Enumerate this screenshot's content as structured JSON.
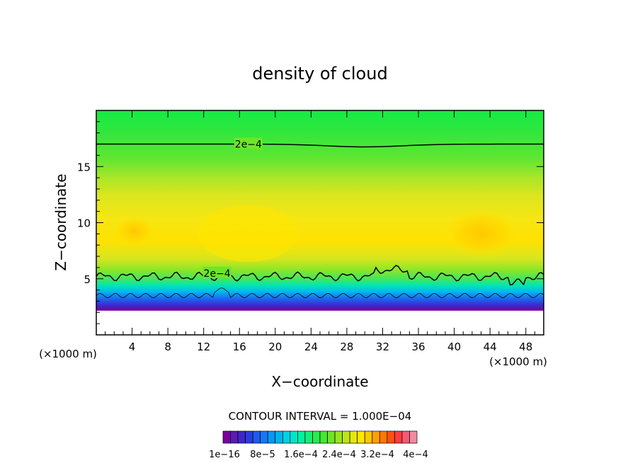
{
  "chart_data": {
    "type": "heatmap",
    "title": "density of cloud",
    "xlabel": "X−coordinate",
    "ylabel": "Z−coordinate",
    "x_unit_label": "(×1000 m)",
    "x_unit_label_left": "(×1000 m)",
    "xlim": [
      0,
      50
    ],
    "ylim": [
      0,
      20
    ],
    "x_ticks": [
      4,
      8,
      12,
      16,
      20,
      24,
      28,
      32,
      36,
      40,
      44,
      48
    ],
    "y_ticks": [
      5,
      10,
      15
    ],
    "contour_interval_text": "CONTOUR INTERVAL = 1.000E−04",
    "contour_labels": [
      {
        "text": "2e−4",
        "x": 17.0,
        "y": 17.0
      },
      {
        "text": "2e−4",
        "x": 13.5,
        "y": 5.5
      }
    ],
    "colorbar": {
      "colors": [
        "#7a00a0",
        "#5a1ab4",
        "#3c28c8",
        "#2a3ce0",
        "#1e5af0",
        "#1478f5",
        "#0a96f5",
        "#00b4f0",
        "#00d2e6",
        "#00e6c8",
        "#00f0a0",
        "#14f078",
        "#28eb50",
        "#46e632",
        "#6ee628",
        "#96e61e",
        "#bee614",
        "#e6e614",
        "#ffe600",
        "#ffc800",
        "#ffa000",
        "#ff7800",
        "#ff5014",
        "#ff3c3c",
        "#f55a78",
        "#f08ca0"
      ],
      "labels": [
        "1e−16",
        "8e−5",
        "1.6e−4",
        "2.4e−4",
        "3.2e−4",
        "4e−4"
      ]
    }
  }
}
